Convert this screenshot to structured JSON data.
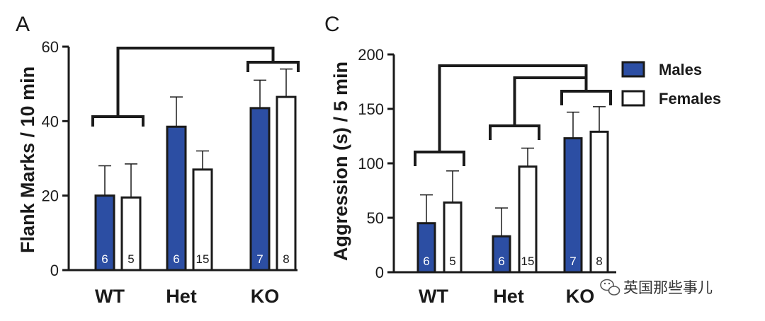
{
  "colors": {
    "male": "#2c4ea3",
    "female": "#ffffff",
    "ink": "#1a1a1a"
  },
  "legend": {
    "males": "Males",
    "females": "Females"
  },
  "watermark": {
    "text": "英国那些事儿",
    "icon": "wechat-icon"
  },
  "chart_data": [
    {
      "panel": "A",
      "type": "bar",
      "ylabel": "Flank Marks / 10 min",
      "ylim": [
        0,
        60
      ],
      "yticks": [
        0,
        20,
        40,
        60
      ],
      "categories": [
        "WT",
        "Het",
        "KO"
      ],
      "series": [
        {
          "name": "Males",
          "values": [
            20,
            38.5,
            43.5
          ],
          "errors": [
            8,
            8,
            7.5
          ],
          "n": [
            "6",
            "6",
            "7"
          ]
        },
        {
          "name": "Females",
          "values": [
            19.5,
            27,
            46.5
          ],
          "errors": [
            9,
            5,
            7.5
          ],
          "n": [
            "5",
            "15",
            "8"
          ]
        }
      ],
      "significance": [
        {
          "type": "group",
          "category": "WT"
        },
        {
          "type": "group",
          "category": "KO"
        },
        {
          "type": "between",
          "from": "WT",
          "to": "KO"
        }
      ]
    },
    {
      "panel": "C",
      "type": "bar",
      "ylabel": "Aggression (s)  / 5 min",
      "ylim": [
        0,
        200
      ],
      "yticks": [
        0,
        50,
        100,
        150,
        200
      ],
      "categories": [
        "WT",
        "Het",
        "KO"
      ],
      "series": [
        {
          "name": "Males",
          "values": [
            45,
            33,
            123
          ],
          "errors": [
            26,
            26,
            24
          ],
          "n": [
            "6",
            "6",
            "7"
          ]
        },
        {
          "name": "Females",
          "values": [
            64,
            97,
            129
          ],
          "errors": [
            29,
            17,
            23
          ],
          "n": [
            "5",
            "15",
            "8"
          ]
        }
      ],
      "significance": [
        {
          "type": "group",
          "category": "WT"
        },
        {
          "type": "group",
          "category": "Het"
        },
        {
          "type": "group",
          "category": "KO"
        },
        {
          "type": "between",
          "from": "WT",
          "to": "KO"
        },
        {
          "type": "between",
          "from": "Het",
          "to": "KO"
        }
      ]
    }
  ]
}
